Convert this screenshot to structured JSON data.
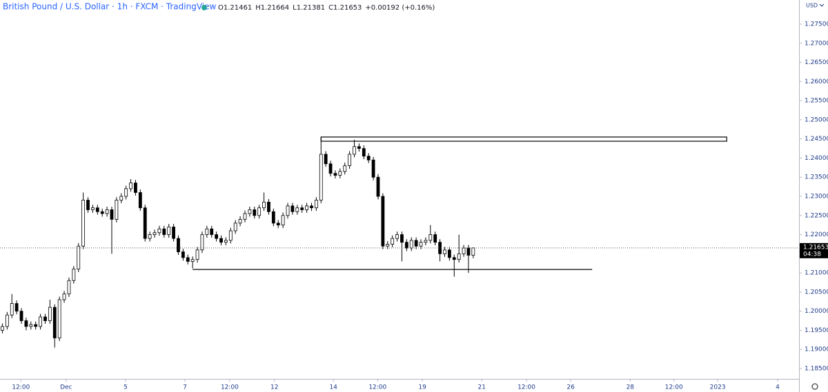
{
  "chart_data": {
    "type": "candlestick",
    "title": "British Pound / U.S. Dollar · 1h · FXCM · TradingView",
    "ohlc": [
      {
        "label": "O",
        "value": "1.21461"
      },
      {
        "label": "H",
        "value": "1.21664"
      },
      {
        "label": "L",
        "value": "1.21381"
      },
      {
        "label": "C",
        "value": "1.21653"
      }
    ],
    "change": "+0.00192 (+0.16%)",
    "currency": "USD",
    "countdown": "04:38",
    "up_color": "#ffffff",
    "down_color": "#000000",
    "x": [
      0,
      1,
      2,
      3,
      4,
      5,
      6,
      7,
      8,
      9,
      10,
      11,
      12,
      13,
      14,
      15,
      16,
      17,
      18,
      19,
      20,
      21,
      22,
      23,
      24,
      25,
      26,
      27,
      28,
      29,
      30,
      31,
      32,
      33,
      34,
      35,
      36,
      37,
      38,
      39,
      40,
      41,
      42,
      43,
      44,
      45,
      46,
      47,
      48,
      49,
      50,
      51,
      52,
      53,
      54,
      55,
      56,
      57,
      58,
      59,
      60,
      61,
      62,
      63,
      64,
      65,
      66,
      67,
      68,
      69,
      70,
      71,
      72,
      73,
      74,
      75,
      76,
      77,
      78,
      79,
      80,
      81,
      82,
      83,
      84,
      85,
      86,
      87,
      88,
      89,
      90,
      91,
      92,
      93,
      94,
      95,
      96,
      97,
      98,
      99
    ],
    "open": [
      1.195,
      1.196,
      1.199,
      1.202,
      1.2,
      1.1975,
      1.196,
      1.1965,
      1.196,
      1.1985,
      1.1975,
      1.201,
      1.193,
      1.203,
      1.2045,
      1.208,
      1.211,
      1.217,
      1.229,
      1.2265,
      1.227,
      1.226,
      1.2255,
      1.2265,
      1.224,
      1.229,
      1.23,
      1.232,
      1.2335,
      1.231,
      1.227,
      1.219,
      1.22,
      1.2205,
      1.2215,
      1.22,
      1.222,
      1.219,
      1.2155,
      1.214,
      1.213,
      1.2135,
      1.216,
      1.22,
      1.2215,
      1.22,
      1.219,
      1.218,
      1.2185,
      1.221,
      1.223,
      1.224,
      1.2255,
      1.2265,
      1.225,
      1.227,
      1.2285,
      1.226,
      1.223,
      1.2225,
      1.225,
      1.2275,
      1.226,
      1.227,
      1.2265,
      1.2275,
      1.227,
      1.229,
      1.241,
      1.2385,
      1.236,
      1.2355,
      1.2365,
      1.238,
      1.241,
      1.243,
      1.2425,
      1.2405,
      1.2395,
      1.235,
      1.23,
      1.217,
      1.2175,
      1.219,
      1.22,
      1.218,
      1.2165,
      1.2185,
      1.217,
      1.218,
      1.2185,
      1.22,
      1.218,
      1.215,
      1.216,
      1.214,
      1.2135,
      1.215,
      1.2165,
      1.21461
    ],
    "high": [
      1.1968,
      1.1998,
      1.2045,
      1.2028,
      1.2008,
      1.1983,
      1.1973,
      1.1973,
      1.1993,
      1.1993,
      1.203,
      1.2018,
      1.2038,
      1.2053,
      1.2088,
      1.2118,
      1.2178,
      1.231,
      1.2298,
      1.2278,
      1.2278,
      1.2268,
      1.2273,
      1.2273,
      1.2298,
      1.2308,
      1.2328,
      1.2345,
      1.2343,
      1.2318,
      1.2278,
      1.2208,
      1.2213,
      1.2223,
      1.2223,
      1.2228,
      1.2228,
      1.2198,
      1.2163,
      1.2148,
      1.2143,
      1.2168,
      1.2208,
      1.2223,
      1.2223,
      1.2208,
      1.2198,
      1.2193,
      1.2218,
      1.2238,
      1.2248,
      1.2263,
      1.2273,
      1.2273,
      1.2278,
      1.231,
      1.2293,
      1.2268,
      1.2238,
      1.2258,
      1.2283,
      1.2283,
      1.2278,
      1.2278,
      1.2283,
      1.2283,
      1.2298,
      1.2455,
      1.2418,
      1.2393,
      1.2368,
      1.2373,
      1.2388,
      1.2418,
      1.2448,
      1.2438,
      1.2433,
      1.2413,
      1.2403,
      1.2358,
      1.2308,
      1.2183,
      1.2198,
      1.2208,
      1.2208,
      1.2188,
      1.2193,
      1.2193,
      1.2188,
      1.2193,
      1.2225,
      1.2208,
      1.2188,
      1.2168,
      1.2168,
      1.2148,
      1.22,
      1.2173,
      1.2173,
      1.21664
    ],
    "low": [
      1.1942,
      1.1952,
      1.1982,
      1.1992,
      1.1967,
      1.195,
      1.1952,
      1.1952,
      1.1952,
      1.1967,
      1.1967,
      1.1905,
      1.1922,
      1.2022,
      1.2037,
      1.2072,
      1.2102,
      1.2162,
      1.2257,
      1.2257,
      1.2252,
      1.2247,
      1.2247,
      1.215,
      1.2232,
      1.2282,
      1.2292,
      1.2312,
      1.2302,
      1.2262,
      1.2182,
      1.2182,
      1.2192,
      1.2197,
      1.2192,
      1.2192,
      1.2182,
      1.2147,
      1.2132,
      1.2122,
      1.2112,
      1.2127,
      1.2152,
      1.2192,
      1.2192,
      1.2182,
      1.2172,
      1.2172,
      1.2177,
      1.2202,
      1.2222,
      1.2232,
      1.2247,
      1.2242,
      1.2242,
      1.2262,
      1.2252,
      1.2222,
      1.2217,
      1.2217,
      1.2242,
      1.2252,
      1.2252,
      1.2257,
      1.2257,
      1.2262,
      1.2262,
      1.2282,
      1.2377,
      1.2352,
      1.2347,
      1.2347,
      1.2357,
      1.2372,
      1.2402,
      1.2417,
      1.2397,
      1.2387,
      1.2342,
      1.2292,
      1.2162,
      1.2162,
      1.2167,
      1.2182,
      1.213,
      1.2157,
      1.2157,
      1.2162,
      1.2162,
      1.2172,
      1.2177,
      1.2172,
      1.213,
      1.2142,
      1.2132,
      1.209,
      1.2127,
      1.2142,
      1.21,
      1.21381
    ],
    "close": [
      1.196,
      1.199,
      1.202,
      1.2,
      1.1975,
      1.196,
      1.1965,
      1.196,
      1.1985,
      1.1975,
      1.201,
      1.193,
      1.203,
      1.2045,
      1.208,
      1.211,
      1.217,
      1.229,
      1.2265,
      1.227,
      1.226,
      1.2255,
      1.2265,
      1.224,
      1.229,
      1.23,
      1.232,
      1.2335,
      1.231,
      1.227,
      1.219,
      1.22,
      1.2205,
      1.2215,
      1.22,
      1.222,
      1.219,
      1.2155,
      1.214,
      1.213,
      1.2135,
      1.216,
      1.22,
      1.2215,
      1.22,
      1.219,
      1.218,
      1.2185,
      1.221,
      1.223,
      1.224,
      1.2255,
      1.2265,
      1.225,
      1.227,
      1.2285,
      1.226,
      1.223,
      1.2225,
      1.225,
      1.2275,
      1.226,
      1.227,
      1.2265,
      1.2275,
      1.227,
      1.229,
      1.241,
      1.2385,
      1.236,
      1.2355,
      1.2365,
      1.238,
      1.241,
      1.243,
      1.2425,
      1.2405,
      1.2395,
      1.235,
      1.23,
      1.217,
      1.2175,
      1.219,
      1.22,
      1.218,
      1.2165,
      1.2185,
      1.217,
      1.218,
      1.2185,
      1.22,
      1.218,
      1.215,
      1.216,
      1.214,
      1.2135,
      1.215,
      1.2165,
      1.21461,
      1.21653
    ],
    "xlim": [
      -0.5,
      167.5
    ],
    "ylim": [
      1.1823,
      1.2813
    ],
    "xticks": [
      {
        "value": 3.9,
        "label": "12:00"
      },
      {
        "value": 13.4,
        "label": "Dec"
      },
      {
        "value": 25.9,
        "label": "5"
      },
      {
        "value": 38.4,
        "label": "7"
      },
      {
        "value": 47.8,
        "label": "12:00"
      },
      {
        "value": 57.2,
        "label": "12"
      },
      {
        "value": 69.6,
        "label": "14"
      },
      {
        "value": 78.9,
        "label": "12:00"
      },
      {
        "value": 88.3,
        "label": "19"
      },
      {
        "value": 100.8,
        "label": "21"
      },
      {
        "value": 110.2,
        "label": "12:00"
      },
      {
        "value": 119.5,
        "label": "26"
      },
      {
        "value": 132,
        "label": "28"
      },
      {
        "value": 141.2,
        "label": "12:00"
      },
      {
        "value": 150.4,
        "label": "2023"
      },
      {
        "value": 163,
        "label": "4"
      }
    ],
    "yticks": [
      {
        "value": 1.275,
        "label": "1.27500"
      },
      {
        "value": 1.27,
        "label": "1.27000"
      },
      {
        "value": 1.265,
        "label": "1.26500"
      },
      {
        "value": 1.26,
        "label": "1.26000"
      },
      {
        "value": 1.255,
        "label": "1.25500"
      },
      {
        "value": 1.25,
        "label": "1.25000"
      },
      {
        "value": 1.245,
        "label": "1.24500"
      },
      {
        "value": 1.24,
        "label": "1.24000"
      },
      {
        "value": 1.235,
        "label": "1.23500"
      },
      {
        "value": 1.23,
        "label": "1.23000"
      },
      {
        "value": 1.225,
        "label": "1.22500"
      },
      {
        "value": 1.22,
        "label": "1.22000"
      },
      {
        "value": 1.215,
        "label": "1.21500"
      },
      {
        "value": 1.21,
        "label": "1.21000"
      },
      {
        "value": 1.205,
        "label": "1.20500"
      },
      {
        "value": 1.2,
        "label": "1.20000"
      },
      {
        "value": 1.195,
        "label": "1.19500"
      },
      {
        "value": 1.19,
        "label": "1.19000"
      },
      {
        "value": 1.185,
        "label": "1.18500"
      }
    ],
    "annotations": [
      {
        "type": "rectangle",
        "x": [
          67,
          152.3
        ],
        "y": [
          1.2444,
          1.2455
        ]
      },
      {
        "type": "hline",
        "x": [
          40,
          124
        ],
        "y": [
          1.2109
        ]
      }
    ]
  }
}
